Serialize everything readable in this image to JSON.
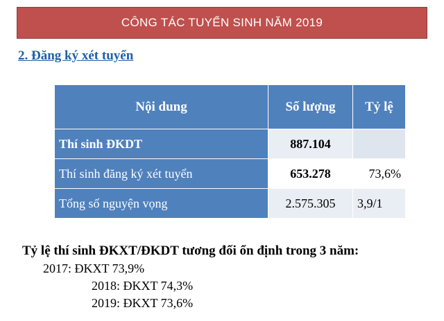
{
  "banner": {
    "title": "CÔNG TÁC TUYỂN SINH NĂM 2019",
    "color": "#c0504d"
  },
  "section": {
    "heading": "2. Đăng ký xét tuyển"
  },
  "table": {
    "headers": [
      "Nội dung",
      "Số lượng",
      "Tỷ  lệ"
    ],
    "rows": [
      {
        "label": "Thí sinh ĐKDT",
        "count": "887.104",
        "ratio": ""
      },
      {
        "label": "Thí sinh đăng ký xét tuyển",
        "count": "653.278",
        "ratio": "73,6%"
      },
      {
        "label": "Tổng số nguyện vọng",
        "count": "2.575.305",
        "ratio": "3,9/1"
      }
    ],
    "header_color": "#4f81bd"
  },
  "summary": {
    "text": "Tỷ lệ thí sinh ĐKXT/ĐKDT tương đối ổn định trong 3 năm:",
    "years": [
      "2017: ĐKXT 73,9%",
      "2018: ĐKXT 74,3%",
      "2019: ĐKXT 73,6%"
    ]
  }
}
